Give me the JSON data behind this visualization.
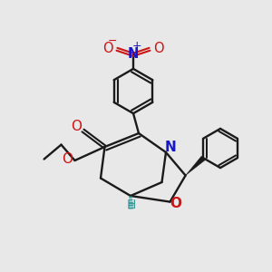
{
  "bg_color": "#e8e8e8",
  "bond_color": "#1a1a1a",
  "n_color": "#1515cc",
  "o_color": "#cc1515",
  "h_color": "#3a9a9a",
  "lw": 1.7,
  "figsize": [
    3.0,
    3.0
  ],
  "dpi": 100,
  "xlim": [
    0,
    10
  ],
  "ylim": [
    0,
    10
  ]
}
